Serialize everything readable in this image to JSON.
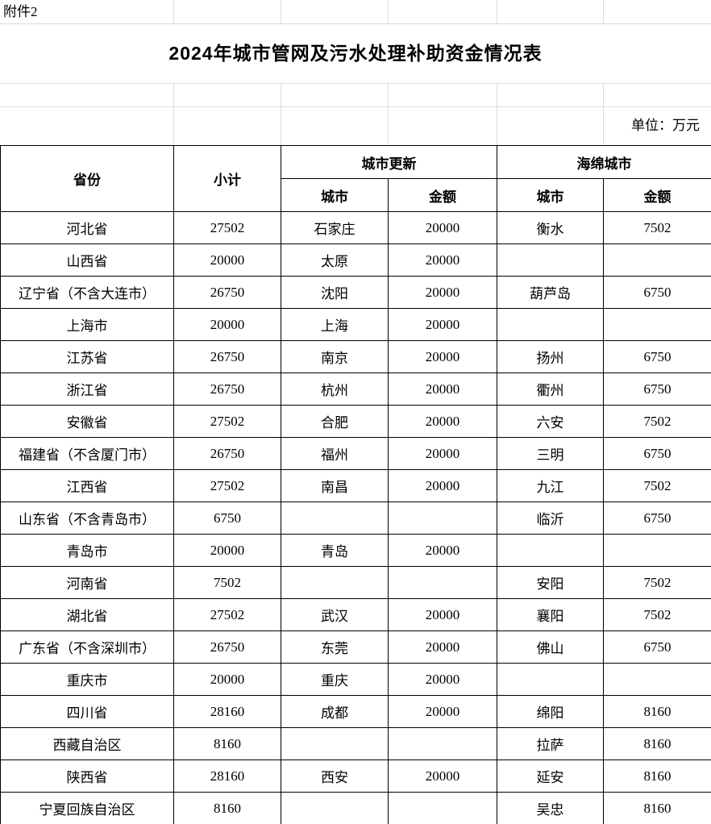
{
  "page": {
    "attachment_label": "附件2",
    "title": "2024年城市管网及污水处理补助资金情况表",
    "unit_note": "单位：万元"
  },
  "table": {
    "headers": {
      "province": "省份",
      "subtotal": "小计",
      "urban_renewal_group": "城市更新",
      "sponge_city_group": "海绵城市",
      "city": "城市",
      "amount": "金额"
    },
    "rows": [
      {
        "province": "河北省",
        "subtotal": "27502",
        "renewal_city": "石家庄",
        "renewal_amount": "20000",
        "sponge_city": "衡水",
        "sponge_amount": "7502"
      },
      {
        "province": "山西省",
        "subtotal": "20000",
        "renewal_city": "太原",
        "renewal_amount": "20000",
        "sponge_city": "",
        "sponge_amount": ""
      },
      {
        "province": "辽宁省（不含大连市）",
        "subtotal": "26750",
        "renewal_city": "沈阳",
        "renewal_amount": "20000",
        "sponge_city": "葫芦岛",
        "sponge_amount": "6750"
      },
      {
        "province": "上海市",
        "subtotal": "20000",
        "renewal_city": "上海",
        "renewal_amount": "20000",
        "sponge_city": "",
        "sponge_amount": ""
      },
      {
        "province": "江苏省",
        "subtotal": "26750",
        "renewal_city": "南京",
        "renewal_amount": "20000",
        "sponge_city": "扬州",
        "sponge_amount": "6750"
      },
      {
        "province": "浙江省",
        "subtotal": "26750",
        "renewal_city": "杭州",
        "renewal_amount": "20000",
        "sponge_city": "衢州",
        "sponge_amount": "6750"
      },
      {
        "province": "安徽省",
        "subtotal": "27502",
        "renewal_city": "合肥",
        "renewal_amount": "20000",
        "sponge_city": "六安",
        "sponge_amount": "7502"
      },
      {
        "province": "福建省（不含厦门市）",
        "subtotal": "26750",
        "renewal_city": "福州",
        "renewal_amount": "20000",
        "sponge_city": "三明",
        "sponge_amount": "6750"
      },
      {
        "province": "江西省",
        "subtotal": "27502",
        "renewal_city": "南昌",
        "renewal_amount": "20000",
        "sponge_city": "九江",
        "sponge_amount": "7502"
      },
      {
        "province": "山东省（不含青岛市）",
        "subtotal": "6750",
        "renewal_city": "",
        "renewal_amount": "",
        "sponge_city": "临沂",
        "sponge_amount": "6750"
      },
      {
        "province": "青岛市",
        "subtotal": "20000",
        "renewal_city": "青岛",
        "renewal_amount": "20000",
        "sponge_city": "",
        "sponge_amount": ""
      },
      {
        "province": "河南省",
        "subtotal": "7502",
        "renewal_city": "",
        "renewal_amount": "",
        "sponge_city": "安阳",
        "sponge_amount": "7502"
      },
      {
        "province": "湖北省",
        "subtotal": "27502",
        "renewal_city": "武汉",
        "renewal_amount": "20000",
        "sponge_city": "襄阳",
        "sponge_amount": "7502"
      },
      {
        "province": "广东省（不含深圳市）",
        "subtotal": "26750",
        "renewal_city": "东莞",
        "renewal_amount": "20000",
        "sponge_city": "佛山",
        "sponge_amount": "6750"
      },
      {
        "province": "重庆市",
        "subtotal": "20000",
        "renewal_city": "重庆",
        "renewal_amount": "20000",
        "sponge_city": "",
        "sponge_amount": ""
      },
      {
        "province": "四川省",
        "subtotal": "28160",
        "renewal_city": "成都",
        "renewal_amount": "20000",
        "sponge_city": "绵阳",
        "sponge_amount": "8160"
      },
      {
        "province": "西藏自治区",
        "subtotal": "8160",
        "renewal_city": "",
        "renewal_amount": "",
        "sponge_city": "拉萨",
        "sponge_amount": "8160"
      },
      {
        "province": "陕西省",
        "subtotal": "28160",
        "renewal_city": "西安",
        "renewal_amount": "20000",
        "sponge_city": "延安",
        "sponge_amount": "8160"
      },
      {
        "province": "宁夏回族自治区",
        "subtotal": "8160",
        "renewal_city": "",
        "renewal_amount": "",
        "sponge_city": "吴忠",
        "sponge_amount": "8160"
      }
    ]
  },
  "colors": {
    "background": "#ffffff",
    "text": "#000000",
    "table_border": "#000000",
    "faint_gridline": "#dcdcdc"
  }
}
